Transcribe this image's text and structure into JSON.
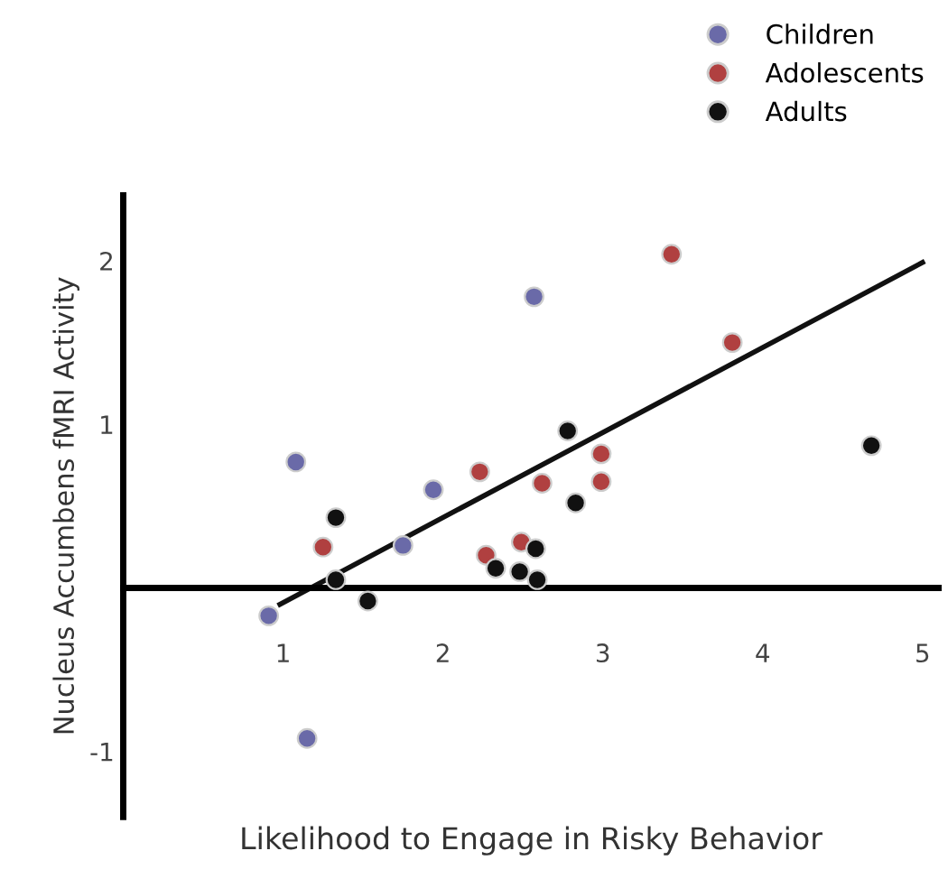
{
  "chart_data": {
    "type": "scatter",
    "xlabel": "Likelihood to Engage in Risky Behavior",
    "ylabel": "Nucleus Accumbens fMRI Activity",
    "xlim": [
      0,
      5.1
    ],
    "ylim": [
      -1.4,
      2.4
    ],
    "xticks": [
      1,
      2,
      3,
      4,
      5
    ],
    "yticks": [
      -1,
      1,
      2
    ],
    "grid": false,
    "legend": "top right",
    "marker": "circle",
    "series": [
      {
        "name": "Children",
        "color": "#6a6aa8",
        "x": [
          1.08,
          1.94,
          1.75,
          2.57,
          0.91,
          1.15
        ],
        "values": [
          0.77,
          0.6,
          0.26,
          1.78,
          -0.17,
          -0.92
        ]
      },
      {
        "name": "Adolescents",
        "color": "#b04040",
        "x": [
          1.25,
          2.23,
          2.27,
          2.49,
          2.62,
          2.99,
          2.99,
          3.43,
          3.81
        ],
        "values": [
          0.25,
          0.71,
          0.2,
          0.28,
          0.64,
          0.82,
          0.65,
          2.04,
          1.5
        ]
      },
      {
        "name": "Adults",
        "color": "#111111",
        "x": [
          1.33,
          1.33,
          1.53,
          2.33,
          2.48,
          2.59,
          2.58,
          2.78,
          2.83,
          4.68
        ],
        "values": [
          0.43,
          0.05,
          -0.08,
          0.12,
          0.1,
          0.05,
          0.24,
          0.96,
          0.52,
          0.87
        ]
      },
      {
        "type": "line",
        "marker": "none",
        "color": "#111111",
        "x": [
          0.98,
          5
        ],
        "values": [
          -0.1,
          1.99
        ]
      }
    ]
  }
}
